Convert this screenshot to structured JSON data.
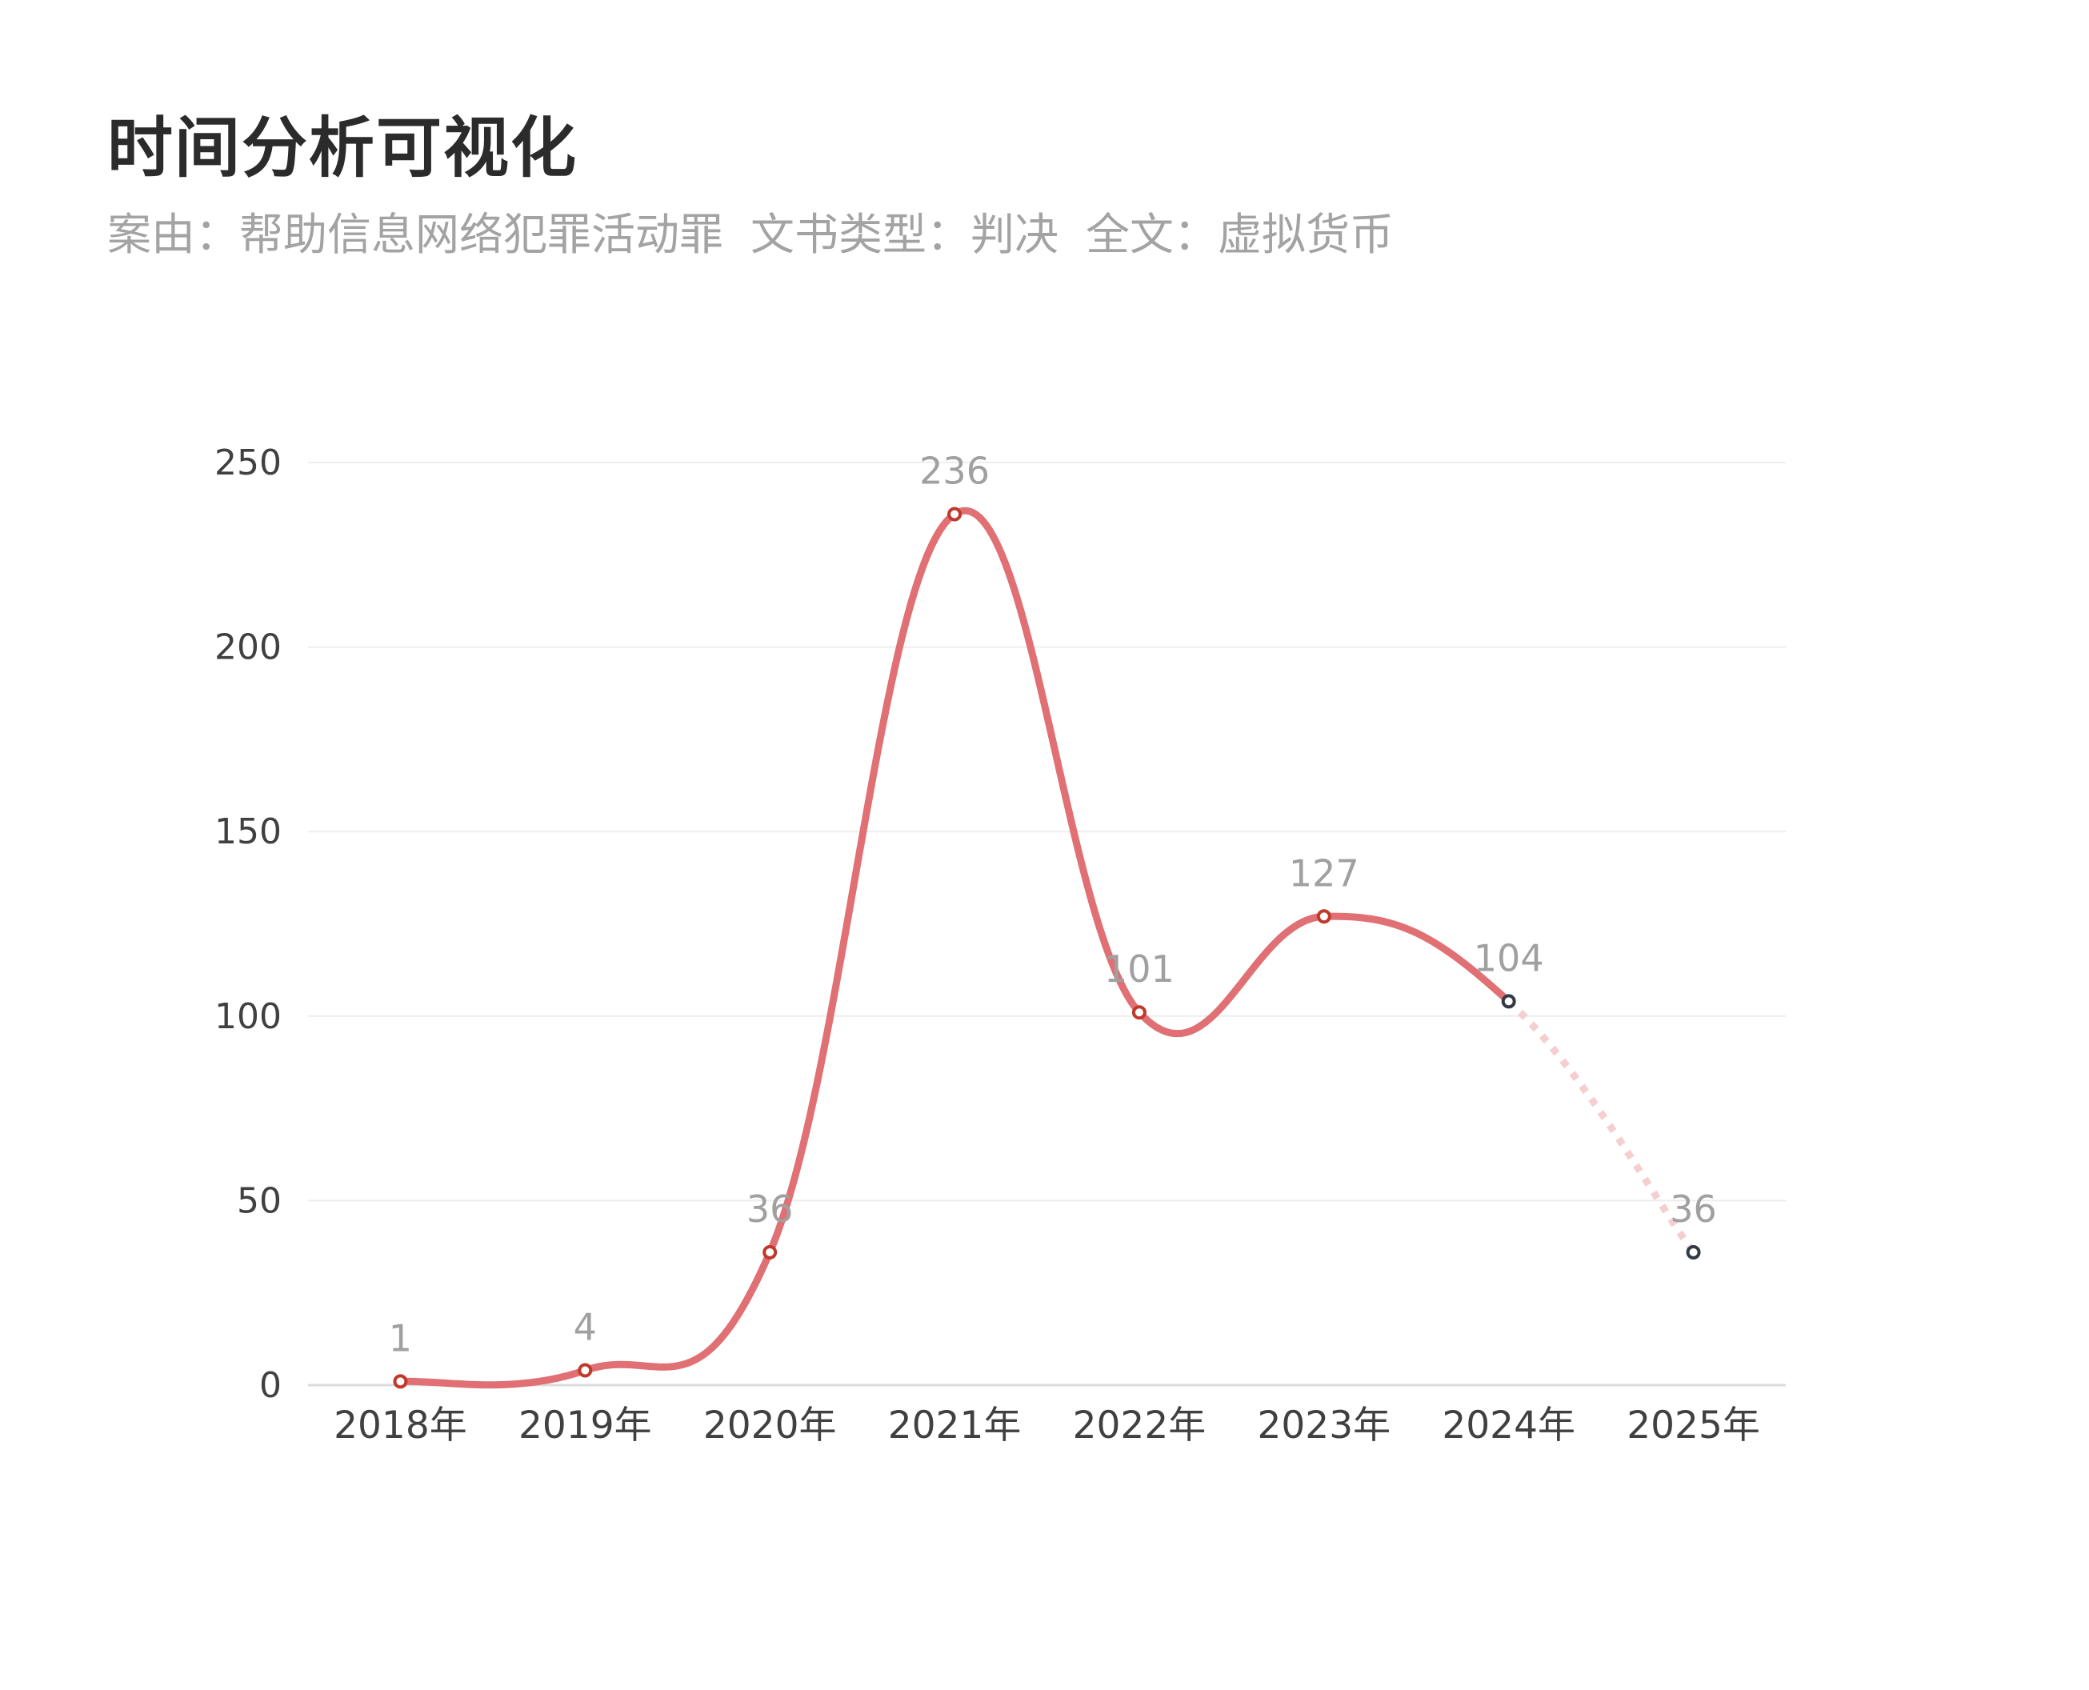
{
  "header": {
    "title": "时间分析可视化",
    "filters": [
      "案由：帮助信息网络犯罪活动罪",
      "文书类型：判决",
      "全文：虚拟货币"
    ]
  },
  "chart_data": {
    "type": "line",
    "title": "时间分析可视化",
    "subtitle": "案由：帮助信息网络犯罪活动罪  文书类型：判决  全文：虚拟货币",
    "categories": [
      "2018年",
      "2019年",
      "2020年",
      "2021年",
      "2022年",
      "2023年",
      "2024年",
      "2025年"
    ],
    "values": [
      1,
      4,
      36,
      236,
      101,
      127,
      104,
      36
    ],
    "data_labels": [
      "1",
      "4",
      "36",
      "236",
      "101",
      "127",
      "104",
      "36"
    ],
    "y_ticks": [
      0,
      50,
      100,
      150,
      200,
      250
    ],
    "ylim": [
      0,
      250
    ],
    "smooth": true,
    "grid": true,
    "legend": "none",
    "segments": [
      {
        "from": "2018年",
        "to": "2024年",
        "style": "solid"
      },
      {
        "from": "2024年",
        "to": "2025年",
        "style": "dotted-faded"
      }
    ],
    "colors": {
      "line": "#e07073",
      "line_faded": "#f5cfd0",
      "point_stroke": "#c0392b",
      "point_stroke_dark": "#333a44",
      "grid": "#eeeeee",
      "axis": "#dcdcdc"
    }
  }
}
